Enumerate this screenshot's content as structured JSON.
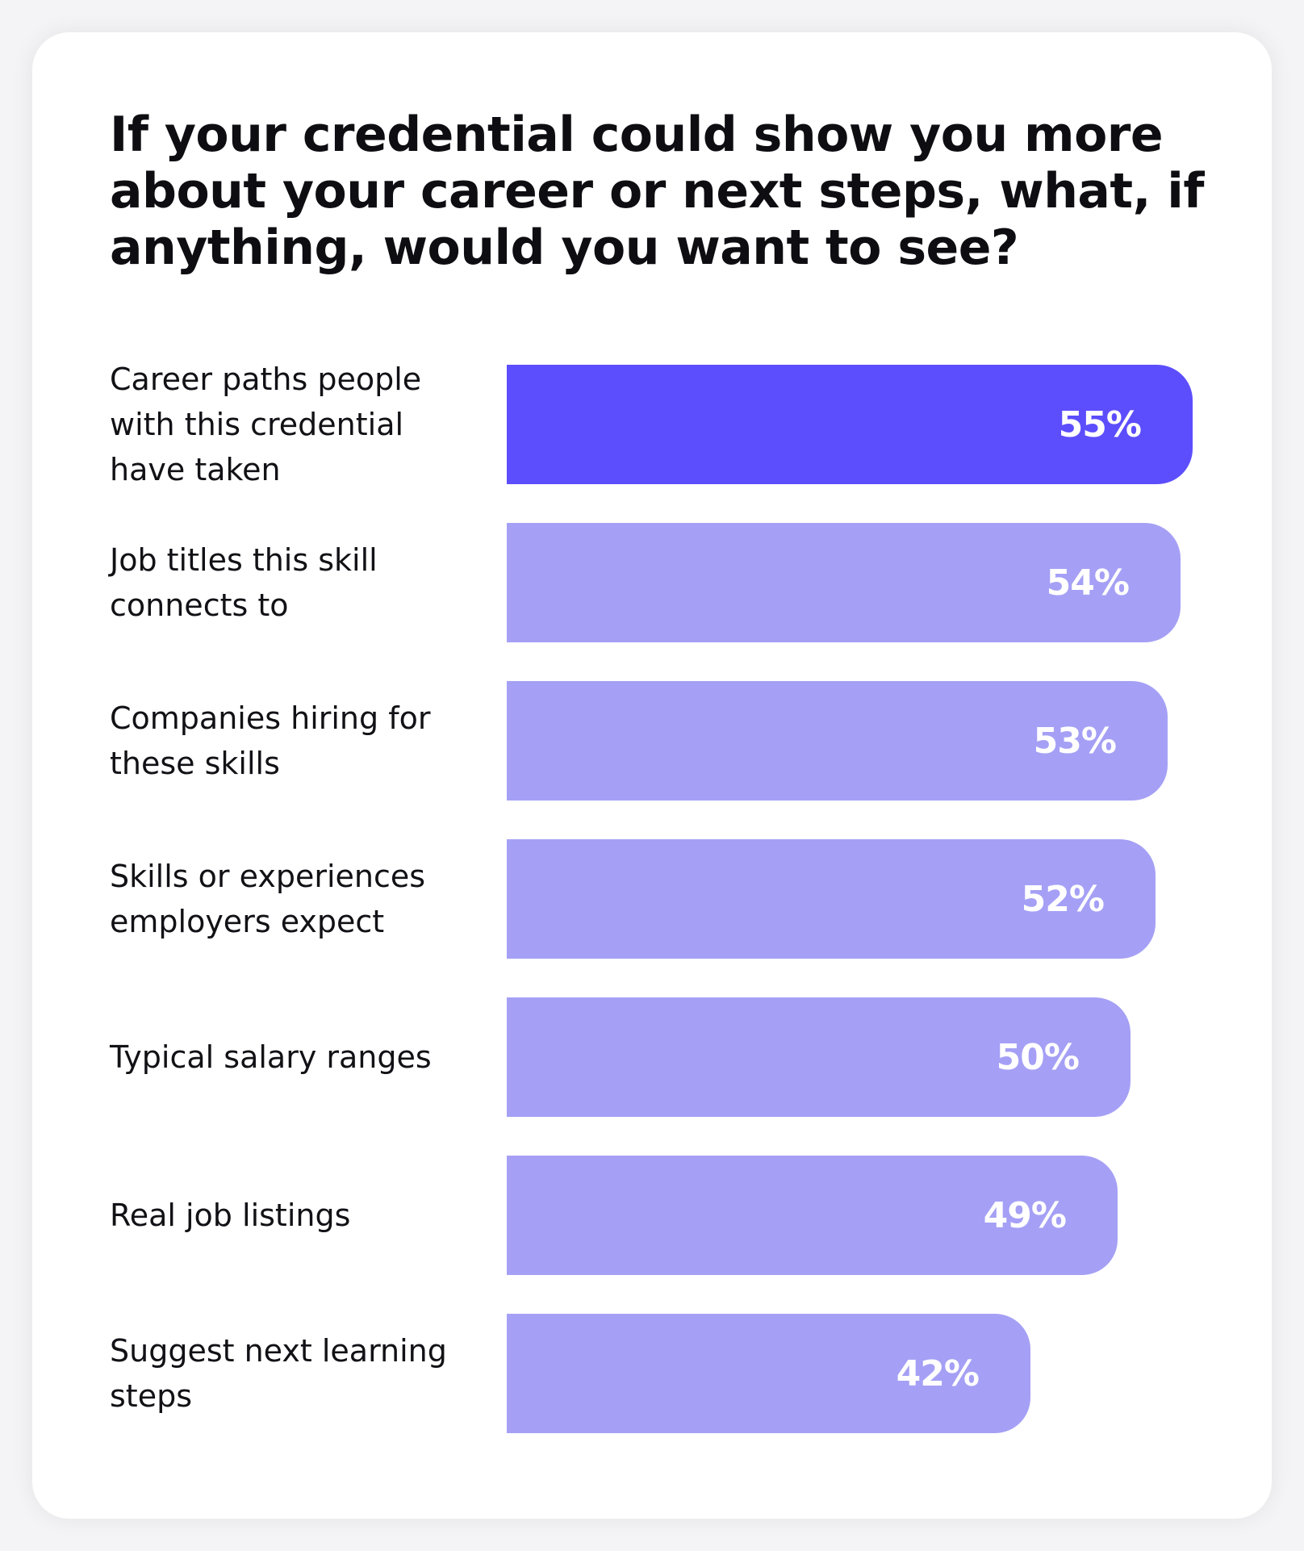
{
  "chart_data": {
    "type": "bar",
    "orientation": "horizontal",
    "title": "If your credential could show you more about your career or next steps, what, if anything, would you want to see?",
    "categories": [
      "Career paths people\nwith this credential\nhave taken",
      "Job titles this skill\nconnects to",
      "Companies hiring for\nthese skills",
      "Skills or experiences\nemployers expect",
      "Typical salary ranges",
      "Real job listings",
      "Suggest next learning\nsteps"
    ],
    "values": [
      55,
      54,
      53,
      52,
      50,
      49,
      42
    ],
    "value_labels": [
      "55%",
      "54%",
      "53%",
      "52%",
      "50%",
      "49%",
      "42%"
    ],
    "unit": "%",
    "highlighted_index": 0,
    "colors": {
      "highlight": "#5c4efd",
      "bar": "#a5a0f5",
      "value_text": "#ffffff",
      "text": "#111116"
    },
    "grid": false,
    "legend": "none"
  }
}
